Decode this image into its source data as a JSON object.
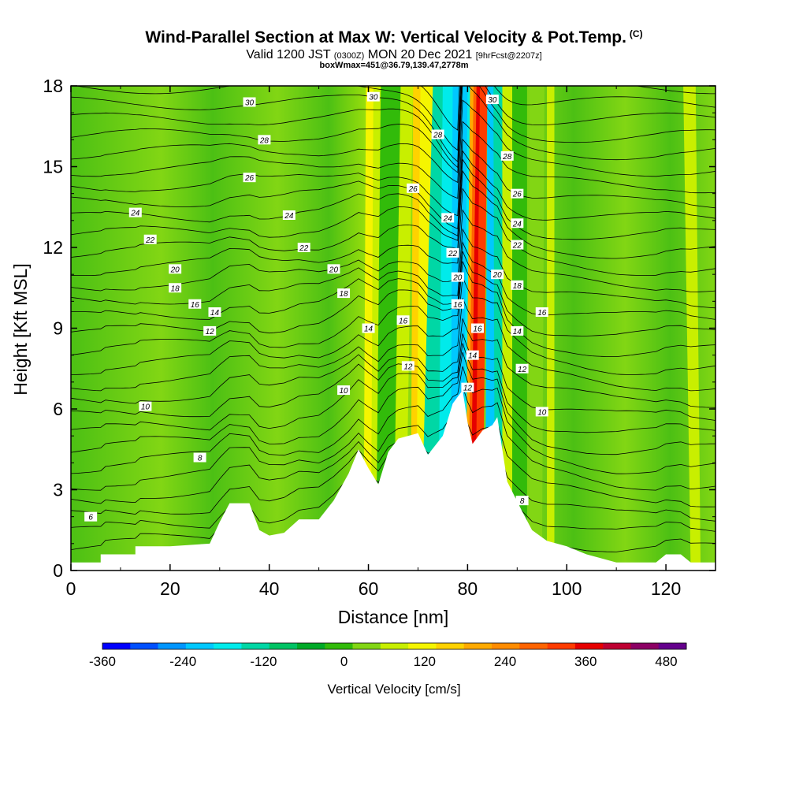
{
  "title": {
    "main": "Wind-Parallel Section at Max W: Vertical Velocity & Pot.Temp.",
    "main_suffix": "(C)",
    "valid_prefix": "Valid 1200 JST",
    "valid_zulu": "(0300Z)",
    "valid_date": "MON 20 Dec 2021",
    "forecast_info": "[9hrFcst@2207z]",
    "box_info": "boxWmax=451@36.79,139.47,2778m"
  },
  "chart_data": {
    "type": "heatmap",
    "xlabel": "Distance [nm]",
    "ylabel": "Height [Kft MSL]",
    "xlim": [
      0,
      130
    ],
    "ylim": [
      0,
      18
    ],
    "xticks": [
      0,
      20,
      40,
      60,
      80,
      100,
      120
    ],
    "yticks": [
      0,
      3,
      6,
      9,
      12,
      15,
      18
    ],
    "colorbar": {
      "label": "Vertical Velocity [cm/s]",
      "range": [
        -360,
        510
      ],
      "step": 30,
      "tick_values": [
        -360,
        -240,
        -120,
        0,
        120,
        240,
        360,
        480
      ],
      "colors": [
        "#0000ff",
        "#0050ff",
        "#0096ff",
        "#00c8ff",
        "#00ebeb",
        "#00d7a5",
        "#00c364",
        "#00aa28",
        "#32bb0a",
        "#82d614",
        "#c8ef00",
        "#f5f500",
        "#ffd200",
        "#ffaa00",
        "#ff8c00",
        "#ff6400",
        "#ff3c00",
        "#e60000",
        "#be0032",
        "#8c0064",
        "#64008c"
      ]
    },
    "terrain": [
      [
        0,
        0.3
      ],
      [
        6,
        0.3
      ],
      [
        6,
        0.6
      ],
      [
        13,
        0.6
      ],
      [
        13,
        0.9
      ],
      [
        20,
        0.9
      ],
      [
        28,
        1.0
      ],
      [
        30,
        1.8
      ],
      [
        32,
        2.5
      ],
      [
        36,
        2.5
      ],
      [
        38,
        1.5
      ],
      [
        40,
        1.3
      ],
      [
        43,
        1.4
      ],
      [
        46,
        1.9
      ],
      [
        50,
        1.9
      ],
      [
        53,
        2.6
      ],
      [
        56,
        3.6
      ],
      [
        58,
        4.5
      ],
      [
        60,
        3.8
      ],
      [
        62,
        3.2
      ],
      [
        64,
        4.4
      ],
      [
        66,
        4.9
      ],
      [
        70,
        5.1
      ],
      [
        72,
        4.3
      ],
      [
        75,
        5.0
      ],
      [
        77,
        6.2
      ],
      [
        79,
        6.7
      ],
      [
        80,
        5.5
      ],
      [
        81,
        4.7
      ],
      [
        83,
        5.2
      ],
      [
        85,
        5.4
      ],
      [
        86,
        5.7
      ],
      [
        88,
        3.3
      ],
      [
        91,
        2.2
      ],
      [
        93,
        1.5
      ],
      [
        96,
        1.1
      ],
      [
        100,
        0.9
      ],
      [
        104,
        0.6
      ],
      [
        110,
        0.3
      ],
      [
        118,
        0.3
      ],
      [
        120,
        0.6
      ],
      [
        123,
        0.6
      ],
      [
        125,
        0.3
      ],
      [
        130,
        0.3
      ]
    ],
    "theta_contour_labels": [
      {
        "x": 36,
        "y": 17.4,
        "text": "30"
      },
      {
        "x": 61,
        "y": 17.6,
        "text": "30"
      },
      {
        "x": 85,
        "y": 17.5,
        "text": "30"
      },
      {
        "x": 39,
        "y": 16.0,
        "text": "28"
      },
      {
        "x": 74,
        "y": 16.2,
        "text": "28"
      },
      {
        "x": 88,
        "y": 15.4,
        "text": "28"
      },
      {
        "x": 36,
        "y": 14.6,
        "text": "26"
      },
      {
        "x": 69,
        "y": 14.2,
        "text": "26"
      },
      {
        "x": 90,
        "y": 14.0,
        "text": "26"
      },
      {
        "x": 13,
        "y": 13.3,
        "text": "24"
      },
      {
        "x": 44,
        "y": 13.2,
        "text": "24"
      },
      {
        "x": 76,
        "y": 13.1,
        "text": "24"
      },
      {
        "x": 90,
        "y": 12.9,
        "text": "24"
      },
      {
        "x": 16,
        "y": 12.3,
        "text": "22"
      },
      {
        "x": 47,
        "y": 12.0,
        "text": "22"
      },
      {
        "x": 77,
        "y": 11.8,
        "text": "22"
      },
      {
        "x": 90,
        "y": 12.1,
        "text": "22"
      },
      {
        "x": 21,
        "y": 11.2,
        "text": "20"
      },
      {
        "x": 53,
        "y": 11.2,
        "text": "20"
      },
      {
        "x": 78,
        "y": 10.9,
        "text": "20"
      },
      {
        "x": 86,
        "y": 11.0,
        "text": "20"
      },
      {
        "x": 21,
        "y": 10.5,
        "text": "18"
      },
      {
        "x": 55,
        "y": 10.3,
        "text": "18"
      },
      {
        "x": 90,
        "y": 10.6,
        "text": "18"
      },
      {
        "x": 25,
        "y": 9.9,
        "text": "16"
      },
      {
        "x": 67,
        "y": 9.3,
        "text": "16"
      },
      {
        "x": 78,
        "y": 9.9,
        "text": "16"
      },
      {
        "x": 95,
        "y": 9.6,
        "text": "16"
      },
      {
        "x": 82,
        "y": 9.0,
        "text": "16"
      },
      {
        "x": 29,
        "y": 9.6,
        "text": "14"
      },
      {
        "x": 60,
        "y": 9.0,
        "text": "14"
      },
      {
        "x": 81,
        "y": 8.0,
        "text": "14"
      },
      {
        "x": 90,
        "y": 8.9,
        "text": "14"
      },
      {
        "x": 28,
        "y": 8.9,
        "text": "12"
      },
      {
        "x": 68,
        "y": 7.6,
        "text": "12"
      },
      {
        "x": 80,
        "y": 6.8,
        "text": "12"
      },
      {
        "x": 91,
        "y": 7.5,
        "text": "12"
      },
      {
        "x": 15,
        "y": 6.1,
        "text": "10"
      },
      {
        "x": 55,
        "y": 6.7,
        "text": "10"
      },
      {
        "x": 95,
        "y": 5.9,
        "text": "10"
      },
      {
        "x": 26,
        "y": 4.2,
        "text": "8"
      },
      {
        "x": 91,
        "y": 2.6,
        "text": "8"
      },
      {
        "x": 4,
        "y": 2.0,
        "text": "6"
      }
    ]
  }
}
